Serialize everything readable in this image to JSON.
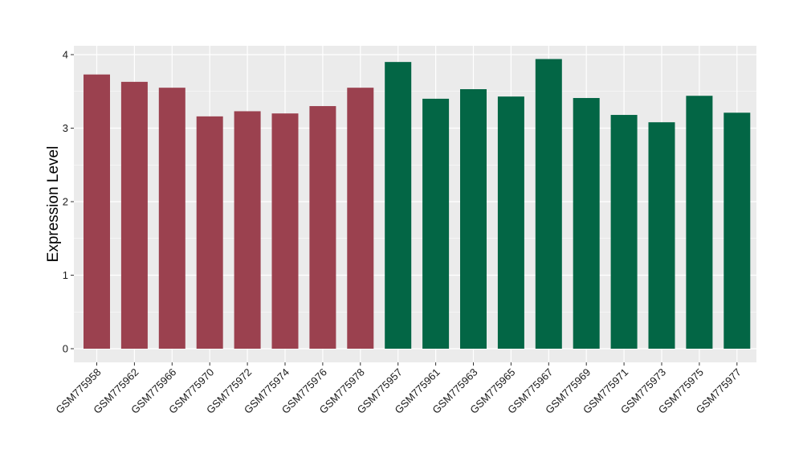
{
  "chart_data": {
    "type": "bar",
    "title": "",
    "xlabel": "",
    "ylabel": "Expression Level",
    "ylim": [
      -0.18,
      4.1
    ],
    "yticks": [
      0,
      1,
      2,
      3,
      4
    ],
    "grid": true,
    "legend": "none",
    "colors": {
      "group_1": "#9b414f",
      "group_2": "#036645",
      "panel": "#ebebeb",
      "grid": "#ffffff"
    },
    "categories": [
      "GSM775958",
      "GSM775962",
      "GSM775966",
      "GSM775970",
      "GSM775972",
      "GSM775974",
      "GSM775976",
      "GSM775978",
      "GSM775957",
      "GSM775961",
      "GSM775963",
      "GSM775965",
      "GSM775967",
      "GSM775969",
      "GSM775971",
      "GSM775973",
      "GSM775975",
      "GSM775977"
    ],
    "values": [
      3.73,
      3.63,
      3.55,
      3.16,
      3.23,
      3.2,
      3.3,
      3.55,
      3.9,
      3.4,
      3.53,
      3.43,
      3.94,
      3.41,
      3.18,
      3.08,
      3.44,
      3.21
    ],
    "groups": [
      1,
      1,
      1,
      1,
      1,
      1,
      1,
      1,
      2,
      2,
      2,
      2,
      2,
      2,
      2,
      2,
      2,
      2
    ]
  }
}
